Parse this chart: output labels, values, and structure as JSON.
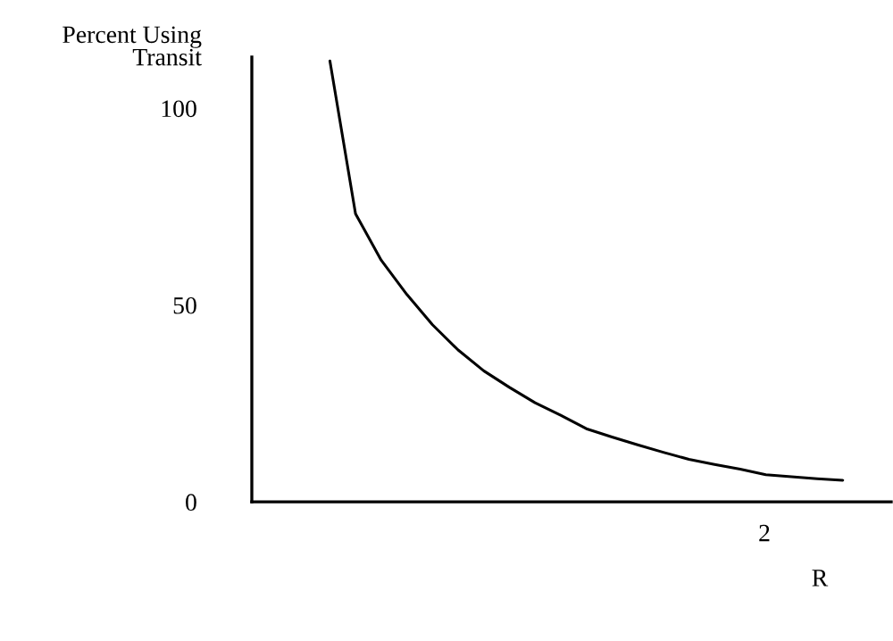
{
  "chart_data": {
    "type": "line",
    "xlabel": "R",
    "ylabel": "Percent Using\nTransit",
    "categories": [
      null,
      null,
      null,
      null,
      null,
      null,
      null,
      null,
      null,
      null,
      null,
      null,
      null,
      null,
      null,
      null,
      null,
      null,
      null,
      null,
      null
    ],
    "series": [
      {
        "color": "#000000",
        "values": [
          112,
          73.2,
          61.4,
          52.7,
          45,
          38.6,
          33.3,
          29.1,
          25.2,
          22,
          18.6,
          16.5,
          14.5,
          12.6,
          10.8,
          9.5,
          8.3,
          6.9,
          6.4,
          5.9,
          5.5
        ]
      }
    ],
    "ylim": [
      0,
      113
    ],
    "yticks": [
      0,
      50,
      100
    ],
    "annotations": [
      "2"
    ],
    "grid": false,
    "legend": false,
    "marker": "none",
    "line_style": "solid"
  }
}
